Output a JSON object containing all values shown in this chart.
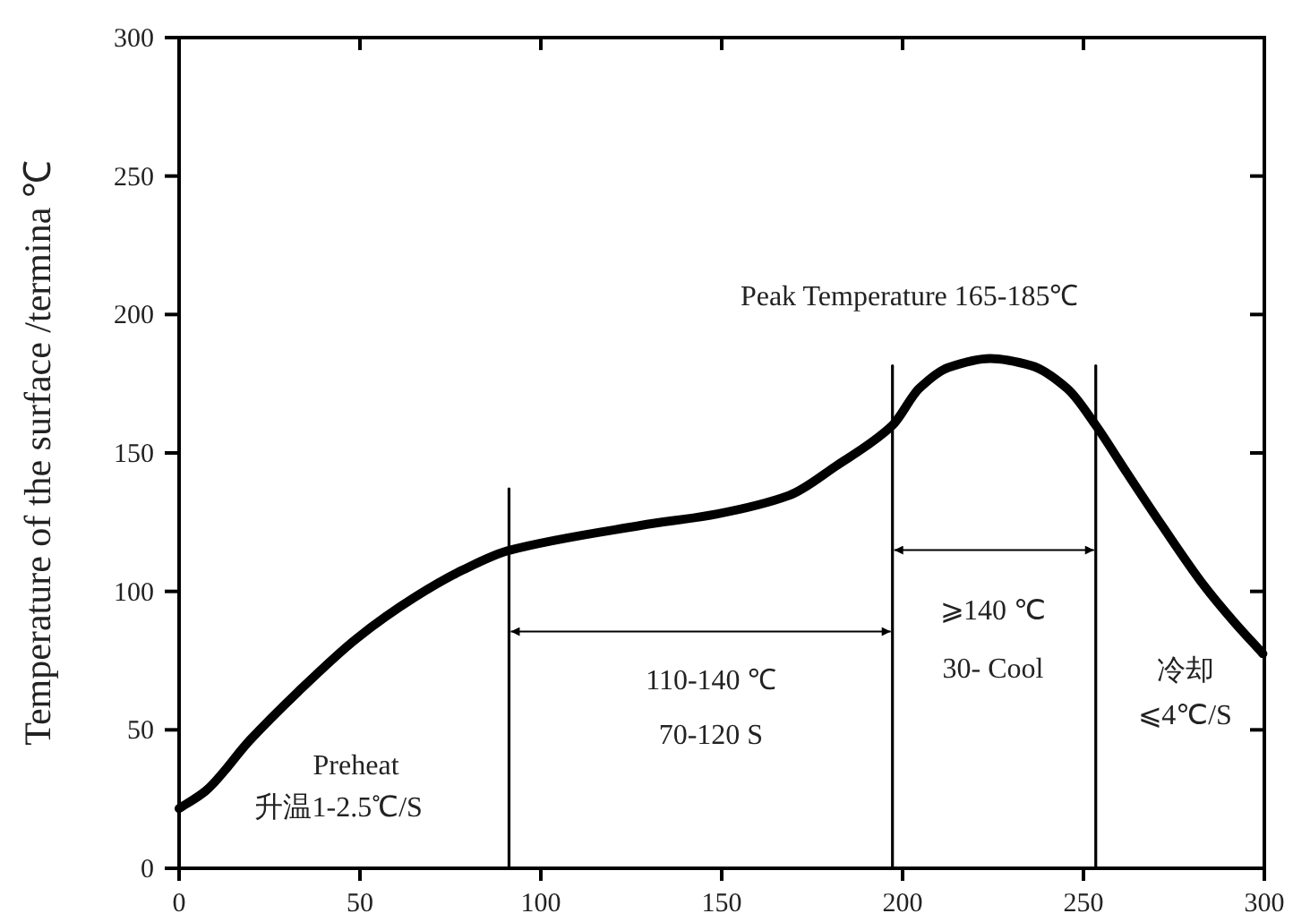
{
  "chart_data": {
    "type": "line",
    "ylabel": "Temperature of the surface /termina ℃",
    "xlim": [
      0,
      300
    ],
    "xticks": [
      0,
      50,
      100,
      150,
      200,
      250,
      300
    ],
    "ylim": [
      0,
      300
    ],
    "yticks": [
      0,
      50,
      100,
      150,
      200,
      250,
      300
    ],
    "grid": false,
    "marker": "none",
    "line_style": "solid",
    "series": [
      {
        "color": "#000000",
        "x": [
          0,
          7.4,
          19.6,
          32.7,
          49,
          65.3,
          78.4,
          91.2,
          127.6,
          148.8,
          168.5,
          181.6,
          197.2,
          204.6,
          212.7,
          224.2,
          235.7,
          245.5,
          253.4,
          261.8,
          271.7,
          283.2,
          291.4,
          299.6
        ],
        "values": [
          21.6,
          28,
          46.3,
          63.5,
          82.9,
          98,
          107.7,
          114.8,
          123.8,
          128,
          134.6,
          145.3,
          160,
          173.3,
          180.9,
          184.1,
          181.5,
          173.3,
          160,
          143.2,
          123.8,
          102.3,
          89.3,
          77.5
        ]
      },
      {
        "color": "#000000",
        "x": [
          91.2,
          91.2
        ],
        "values": [
          0,
          137
        ]
      },
      {
        "color": "#000000",
        "x": [
          197.2,
          197.2
        ],
        "values": [
          0,
          181.5
        ]
      },
      {
        "color": "#000000",
        "x": [
          253.4,
          253.4
        ],
        "values": [
          0,
          181.5
        ]
      }
    ],
    "annotations": [
      "Peak Temperature 165-185℃",
      "Preheat",
      "升温1-2.5℃/S",
      "110-140 ℃",
      "70-120 S",
      "⩾140 ℃",
      "30- Cool",
      "冷却",
      "⩽4℃/S"
    ]
  }
}
